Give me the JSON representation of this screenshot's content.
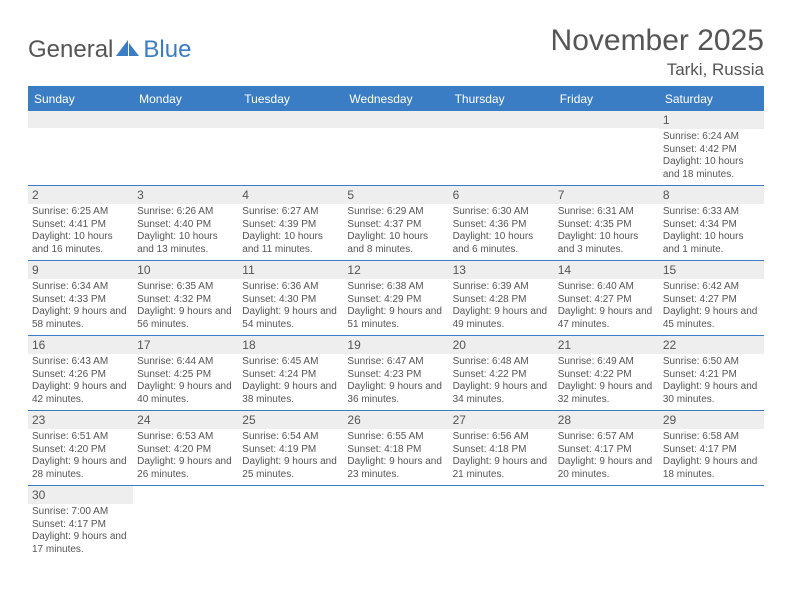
{
  "logo": {
    "part1": "General",
    "part2": "Blue"
  },
  "title": "November 2025",
  "location": "Tarki, Russia",
  "colors": {
    "accent": "#3b7dc4",
    "cell_head_bg": "#eeeeee",
    "text": "#555555",
    "body_bg": "#ffffff"
  },
  "day_headers": [
    "Sunday",
    "Monday",
    "Tuesday",
    "Wednesday",
    "Thursday",
    "Friday",
    "Saturday"
  ],
  "weeks": [
    [
      {
        "empty": true
      },
      {
        "empty": true
      },
      {
        "empty": true
      },
      {
        "empty": true
      },
      {
        "empty": true
      },
      {
        "empty": true
      },
      {
        "n": "1",
        "sr": "6:24 AM",
        "ss": "4:42 PM",
        "dl": "10 hours and 18 minutes."
      }
    ],
    [
      {
        "n": "2",
        "sr": "6:25 AM",
        "ss": "4:41 PM",
        "dl": "10 hours and 16 minutes."
      },
      {
        "n": "3",
        "sr": "6:26 AM",
        "ss": "4:40 PM",
        "dl": "10 hours and 13 minutes."
      },
      {
        "n": "4",
        "sr": "6:27 AM",
        "ss": "4:39 PM",
        "dl": "10 hours and 11 minutes."
      },
      {
        "n": "5",
        "sr": "6:29 AM",
        "ss": "4:37 PM",
        "dl": "10 hours and 8 minutes."
      },
      {
        "n": "6",
        "sr": "6:30 AM",
        "ss": "4:36 PM",
        "dl": "10 hours and 6 minutes."
      },
      {
        "n": "7",
        "sr": "6:31 AM",
        "ss": "4:35 PM",
        "dl": "10 hours and 3 minutes."
      },
      {
        "n": "8",
        "sr": "6:33 AM",
        "ss": "4:34 PM",
        "dl": "10 hours and 1 minute."
      }
    ],
    [
      {
        "n": "9",
        "sr": "6:34 AM",
        "ss": "4:33 PM",
        "dl": "9 hours and 58 minutes."
      },
      {
        "n": "10",
        "sr": "6:35 AM",
        "ss": "4:32 PM",
        "dl": "9 hours and 56 minutes."
      },
      {
        "n": "11",
        "sr": "6:36 AM",
        "ss": "4:30 PM",
        "dl": "9 hours and 54 minutes."
      },
      {
        "n": "12",
        "sr": "6:38 AM",
        "ss": "4:29 PM",
        "dl": "9 hours and 51 minutes."
      },
      {
        "n": "13",
        "sr": "6:39 AM",
        "ss": "4:28 PM",
        "dl": "9 hours and 49 minutes."
      },
      {
        "n": "14",
        "sr": "6:40 AM",
        "ss": "4:27 PM",
        "dl": "9 hours and 47 minutes."
      },
      {
        "n": "15",
        "sr": "6:42 AM",
        "ss": "4:27 PM",
        "dl": "9 hours and 45 minutes."
      }
    ],
    [
      {
        "n": "16",
        "sr": "6:43 AM",
        "ss": "4:26 PM",
        "dl": "9 hours and 42 minutes."
      },
      {
        "n": "17",
        "sr": "6:44 AM",
        "ss": "4:25 PM",
        "dl": "9 hours and 40 minutes."
      },
      {
        "n": "18",
        "sr": "6:45 AM",
        "ss": "4:24 PM",
        "dl": "9 hours and 38 minutes."
      },
      {
        "n": "19",
        "sr": "6:47 AM",
        "ss": "4:23 PM",
        "dl": "9 hours and 36 minutes."
      },
      {
        "n": "20",
        "sr": "6:48 AM",
        "ss": "4:22 PM",
        "dl": "9 hours and 34 minutes."
      },
      {
        "n": "21",
        "sr": "6:49 AM",
        "ss": "4:22 PM",
        "dl": "9 hours and 32 minutes."
      },
      {
        "n": "22",
        "sr": "6:50 AM",
        "ss": "4:21 PM",
        "dl": "9 hours and 30 minutes."
      }
    ],
    [
      {
        "n": "23",
        "sr": "6:51 AM",
        "ss": "4:20 PM",
        "dl": "9 hours and 28 minutes."
      },
      {
        "n": "24",
        "sr": "6:53 AM",
        "ss": "4:20 PM",
        "dl": "9 hours and 26 minutes."
      },
      {
        "n": "25",
        "sr": "6:54 AM",
        "ss": "4:19 PM",
        "dl": "9 hours and 25 minutes."
      },
      {
        "n": "26",
        "sr": "6:55 AM",
        "ss": "4:18 PM",
        "dl": "9 hours and 23 minutes."
      },
      {
        "n": "27",
        "sr": "6:56 AM",
        "ss": "4:18 PM",
        "dl": "9 hours and 21 minutes."
      },
      {
        "n": "28",
        "sr": "6:57 AM",
        "ss": "4:17 PM",
        "dl": "9 hours and 20 minutes."
      },
      {
        "n": "29",
        "sr": "6:58 AM",
        "ss": "4:17 PM",
        "dl": "9 hours and 18 minutes."
      }
    ],
    [
      {
        "n": "30",
        "sr": "7:00 AM",
        "ss": "4:17 PM",
        "dl": "9 hours and 17 minutes."
      },
      {
        "blank": true
      },
      {
        "blank": true
      },
      {
        "blank": true
      },
      {
        "blank": true
      },
      {
        "blank": true
      },
      {
        "blank": true
      }
    ]
  ]
}
